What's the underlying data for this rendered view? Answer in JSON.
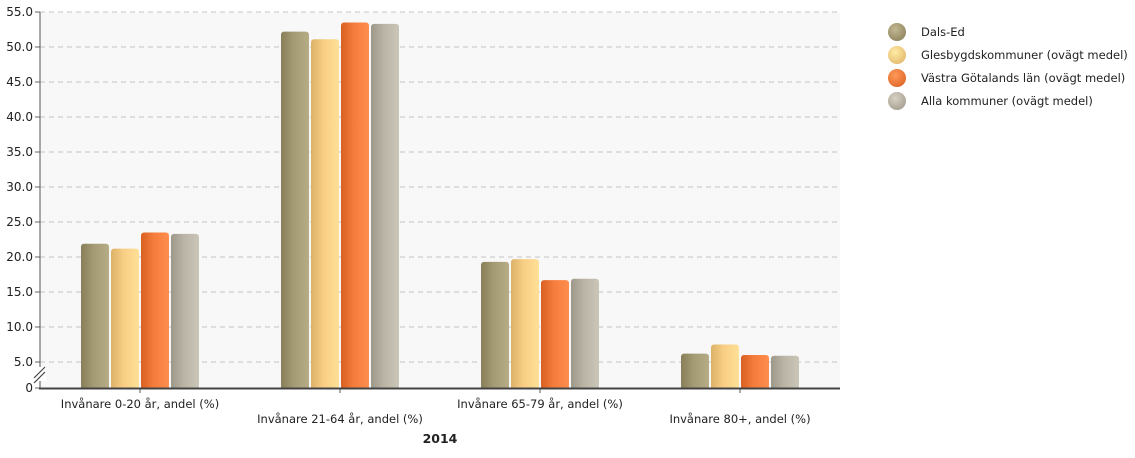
{
  "chart_data": {
    "type": "bar",
    "categories": [
      "Invånare 0-20 år, andel (%)",
      "Invånare 21-64 år, andel (%)",
      "Invånare 65-79 år, andel (%)",
      "Invånare 80+, andel (%)"
    ],
    "series": [
      {
        "name": "Dals-Ed",
        "values": [
          21.9,
          52.2,
          19.3,
          6.2
        ],
        "color": "#a49a74"
      },
      {
        "name": "Glesbygdskommuner (ovägt medel)",
        "values": [
          21.2,
          51.1,
          19.7,
          7.5
        ],
        "color": "#f8ce85"
      },
      {
        "name": "Västra Götalands län (ovägt medel)",
        "values": [
          23.5,
          53.5,
          16.7,
          6.0
        ],
        "color": "#f47c3c"
      },
      {
        "name": "Alla kommuner (ovägt medel)",
        "values": [
          23.3,
          53.3,
          16.9,
          5.9
        ],
        "color": "#b9b4a5"
      }
    ],
    "xlabel": "2014",
    "ylabel": "",
    "ylim": [
      0,
      55
    ],
    "axis_break": true,
    "y_ticks": [
      {
        "value": 0,
        "label": "0"
      },
      {
        "value": 5,
        "label": "5.0"
      },
      {
        "value": 10,
        "label": "10.0"
      },
      {
        "value": 15,
        "label": "15.0"
      },
      {
        "value": 20,
        "label": "20.0"
      },
      {
        "value": 25,
        "label": "25.0"
      },
      {
        "value": 30,
        "label": "30.0"
      },
      {
        "value": 35,
        "label": "35.0"
      },
      {
        "value": 40,
        "label": "40.0"
      },
      {
        "value": 45,
        "label": "45.0"
      },
      {
        "value": 50,
        "label": "50.0"
      },
      {
        "value": 55,
        "label": "55.0"
      }
    ],
    "grid": true,
    "legend_position": "top-right",
    "plot_background": "#f8f8f8"
  }
}
